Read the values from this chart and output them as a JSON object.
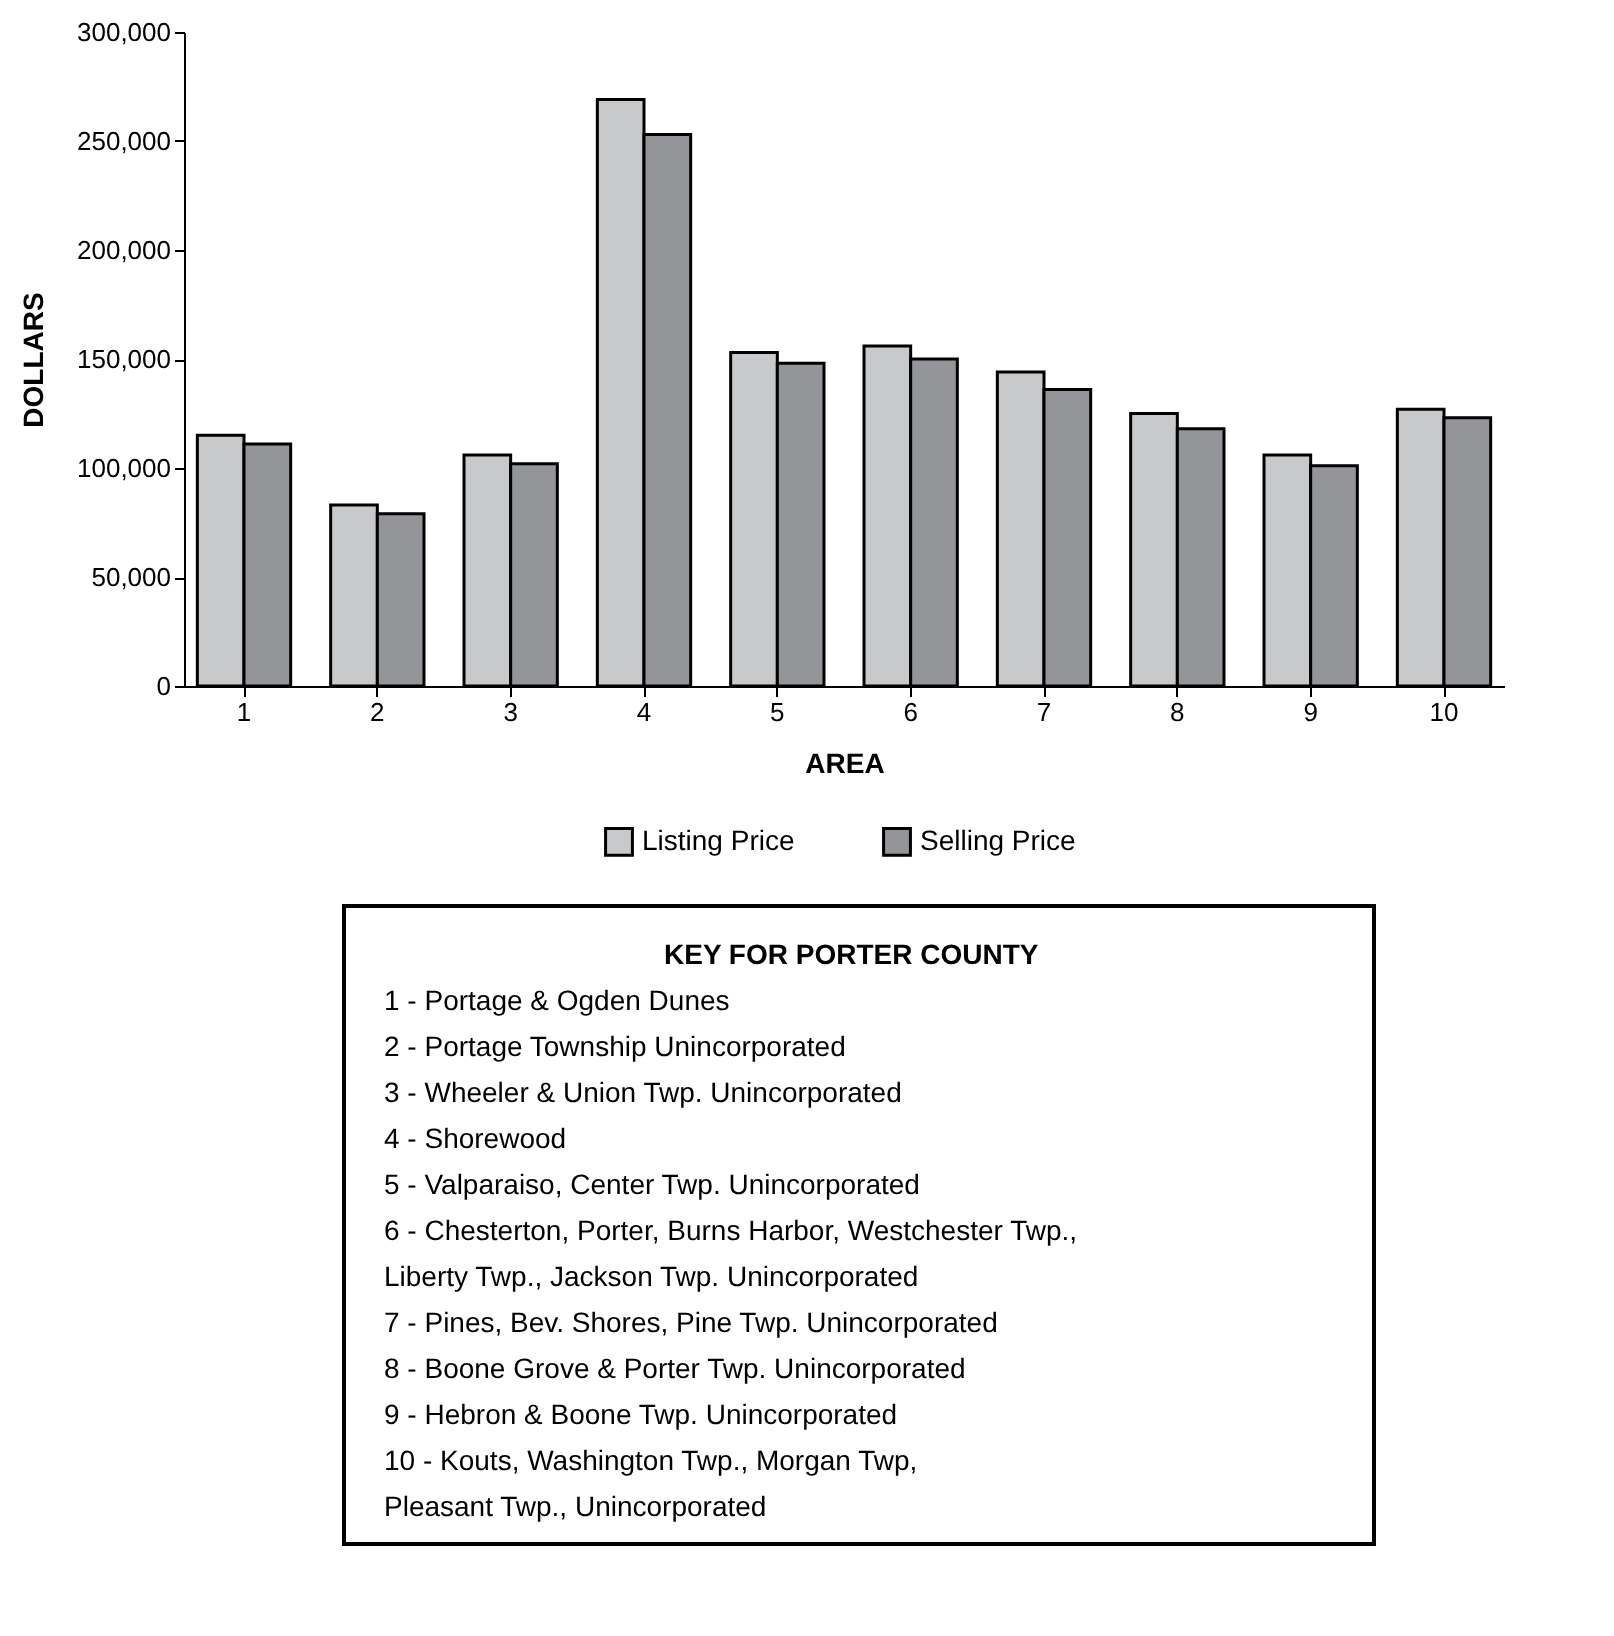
{
  "chart_data": {
    "type": "bar",
    "xlabel": "AREA",
    "ylabel": "DOLLARS",
    "categories": [
      "1",
      "2",
      "3",
      "4",
      "5",
      "6",
      "7",
      "8",
      "9",
      "10"
    ],
    "series": [
      {
        "name": "Listing Price",
        "color": "#c8c9cb",
        "values": [
          115000,
          83000,
          106000,
          269000,
          153000,
          156000,
          144000,
          125000,
          106000,
          127000
        ]
      },
      {
        "name": "Selling Price",
        "color": "#939598",
        "values": [
          111000,
          79000,
          102000,
          253000,
          148000,
          150000,
          136000,
          118000,
          101000,
          123000
        ]
      }
    ],
    "ylim": [
      0,
      300000
    ],
    "yticks": [
      0,
      {
        "value": 50000,
        "label": "50,000"
      },
      {
        "value": 100000,
        "label": "100,000"
      },
      {
        "value": 150000,
        "label": "150,000"
      },
      {
        "value": 200000,
        "label": "200,000"
      },
      {
        "value": 250000,
        "label": "250,000"
      },
      {
        "value": 300000,
        "label": "300,000"
      }
    ],
    "grid": false,
    "legend": "bottom",
    "annotations": [
      "KEY FOR PORTER COUNTY",
      "1  -  Portage & Ogden Dunes",
      "2  -  Portage Township Unincorporated",
      "3  -  Wheeler & Union Twp. Unincorporated",
      "4  -  Shorewood",
      "5  -  Valparaiso, Center Twp. Unincorporated",
      "6  -  Chesterton, Porter, Burns Harbor, Westchester Twp.,",
      "Liberty Twp., Jackson Twp. Unincorporated",
      "7  -  Pines, Bev. Shores, Pine Twp. Unincorporated",
      "8  -  Boone Grove & Porter Twp. Unincorporated",
      "9  -  Hebron & Boone Twp. Unincorporated",
      "10  -  Kouts, Washington Twp., Morgan Twp,",
      "Pleasant Twp., Unincorporated"
    ]
  }
}
